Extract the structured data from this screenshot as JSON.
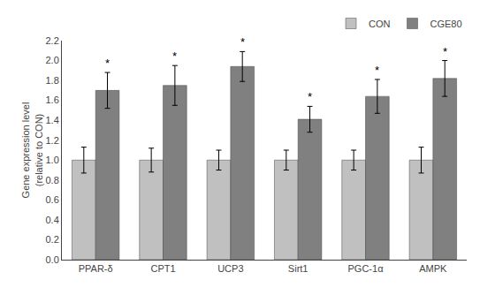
{
  "chart_data": {
    "type": "bar",
    "categories": [
      "PPAR-δ",
      "CPT1",
      "UCP3",
      "Sirt1",
      "PGC-1α",
      "AMPK"
    ],
    "series": [
      {
        "name": "CON",
        "color": "#c0c0c0",
        "values": [
          1.0,
          1.0,
          1.0,
          1.0,
          1.0,
          1.0
        ],
        "errors": [
          0.13,
          0.12,
          0.1,
          0.1,
          0.1,
          0.13
        ]
      },
      {
        "name": "CGE80",
        "color": "#808080",
        "values": [
          1.7,
          1.75,
          1.94,
          1.41,
          1.64,
          1.82
        ],
        "errors": [
          0.18,
          0.2,
          0.15,
          0.13,
          0.17,
          0.18
        ]
      }
    ],
    "ylabel": "Gene expression level\n(relative to CON)",
    "ylim": [
      0.0,
      2.2
    ],
    "yticks": [
      {
        "value": 0.0,
        "label": "0.0"
      },
      0.2,
      0.4,
      0.6,
      0.8,
      {
        "value": 1.0,
        "label": "1.0"
      },
      1.2,
      1.4,
      1.6,
      1.8,
      {
        "value": 2.0,
        "label": "2.0"
      },
      2.2
    ],
    "annotations": [
      {
        "text": "*",
        "category": "PPAR-δ",
        "series": "CGE80"
      },
      {
        "text": "*",
        "category": "CPT1",
        "series": "CGE80"
      },
      {
        "text": "*",
        "category": "UCP3",
        "series": "CGE80"
      },
      {
        "text": "*",
        "category": "Sirt1",
        "series": "CGE80"
      },
      {
        "text": "*",
        "category": "PGC-1α",
        "series": "CGE80"
      },
      {
        "text": "*",
        "category": "AMPK",
        "series": "CGE80"
      }
    ],
    "legend": "upper right",
    "grid": false
  }
}
